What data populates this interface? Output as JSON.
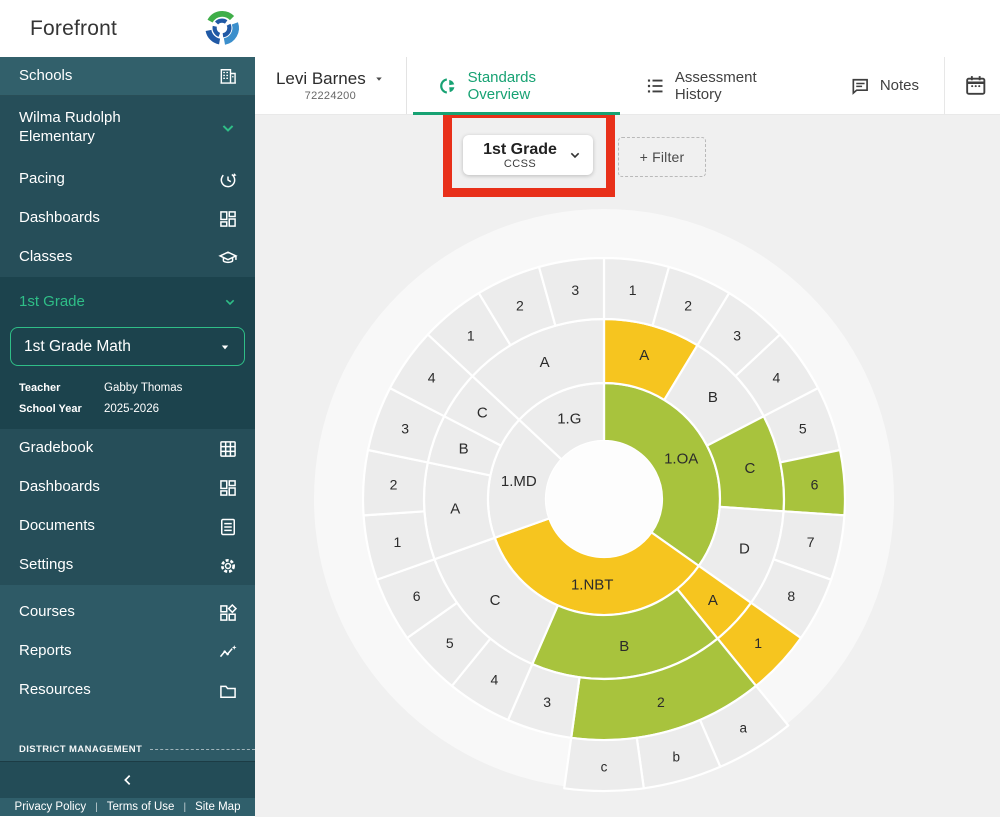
{
  "header": {
    "app_name": "Forefront"
  },
  "sidebar": {
    "schools_label": "Schools",
    "nav_school": [
      {
        "label": "Wilma Rudolph Elementary",
        "icon": "chevron-down",
        "icon_class": "accent",
        "multiline": true
      },
      {
        "label": "Pacing",
        "icon": "pacing"
      },
      {
        "label": "Dashboards",
        "icon": "dashboard"
      },
      {
        "label": "Classes",
        "icon": "graduation-cap"
      }
    ],
    "grade_label": "1st Grade",
    "class_select": "1st Grade Math",
    "teacher_label": "Teacher",
    "teacher_name": "Gabby Thomas",
    "school_year_label": "School Year",
    "school_year": "2025-2026",
    "nav_class": [
      {
        "label": "Gradebook",
        "icon": "gradebook"
      },
      {
        "label": "Dashboards",
        "icon": "dashboard"
      },
      {
        "label": "Documents",
        "icon": "document"
      },
      {
        "label": "Settings",
        "icon": "gear"
      }
    ],
    "nav_district": [
      {
        "label": "Courses",
        "icon": "courses"
      },
      {
        "label": "Reports",
        "icon": "reports"
      },
      {
        "label": "Resources",
        "icon": "folder"
      }
    ],
    "district_management_label": "DISTRICT MANAGEMENT",
    "footer_links": [
      "Privacy Policy",
      "Terms of Use",
      "Site Map"
    ],
    "accent_color": "#2fbe87"
  },
  "main": {
    "student": {
      "name": "Levi Barnes",
      "id": "72224200"
    },
    "tabs": [
      {
        "label": "Standards Overview",
        "icon": "sunburst",
        "active": true
      },
      {
        "label": "Assessment History",
        "icon": "list",
        "active": false
      },
      {
        "label": "Notes",
        "icon": "message",
        "active": false
      }
    ],
    "grade_dropdown": {
      "label": "1st Grade",
      "sublabel": "CCSS"
    },
    "filter_button": "+ Filter",
    "active_tab_color": "#17a273"
  },
  "annotation": {
    "type": "highlight-box",
    "color": "#e8301a"
  },
  "chart_data": {
    "type": "sunburst",
    "title": "1st Grade CCSS math standards overview wheel",
    "rings": [
      "domain",
      "cluster",
      "standard",
      "substandard"
    ],
    "status_colors": {
      "mastered": "#a8c33d",
      "progressing": "#f6c51f",
      "none": "#ececec"
    },
    "background_disk_color": "#f8f8f8",
    "domains": [
      {
        "label": "1.OA",
        "status": "mastered",
        "clusters": [
          {
            "label": "A",
            "status": "progressing",
            "standards": [
              {
                "label": "1"
              },
              {
                "label": "2"
              }
            ]
          },
          {
            "label": "B",
            "standards": [
              {
                "label": "3"
              },
              {
                "label": "4"
              }
            ]
          },
          {
            "label": "C",
            "status": "mastered",
            "standards": [
              {
                "label": "5"
              },
              {
                "label": "6",
                "status": "mastered"
              }
            ]
          },
          {
            "label": "D",
            "standards": [
              {
                "label": "7"
              },
              {
                "label": "8"
              }
            ]
          }
        ]
      },
      {
        "label": "1.NBT",
        "status": "progressing",
        "clusters": [
          {
            "label": "A",
            "status": "progressing",
            "standards": [
              {
                "label": "1",
                "status": "progressing"
              }
            ]
          },
          {
            "label": "B",
            "status": "mastered",
            "standards": [
              {
                "label": "2",
                "status": "mastered",
                "substandards": [
                  {
                    "label": "a"
                  },
                  {
                    "label": "b"
                  },
                  {
                    "label": "c"
                  }
                ]
              },
              {
                "label": "3"
              }
            ]
          },
          {
            "label": "C",
            "standards": [
              {
                "label": "4"
              },
              {
                "label": "5"
              },
              {
                "label": "6"
              }
            ]
          }
        ]
      },
      {
        "label": "1.MD",
        "clusters": [
          {
            "label": "A",
            "standards": [
              {
                "label": "1"
              },
              {
                "label": "2"
              }
            ]
          },
          {
            "label": "B",
            "standards": [
              {
                "label": "3"
              }
            ]
          },
          {
            "label": "C",
            "standards": [
              {
                "label": "4"
              }
            ]
          }
        ]
      },
      {
        "label": "1.G",
        "clusters": [
          {
            "label": "A",
            "standards": [
              {
                "label": "1"
              },
              {
                "label": "2"
              },
              {
                "label": "3"
              }
            ]
          }
        ]
      }
    ]
  }
}
